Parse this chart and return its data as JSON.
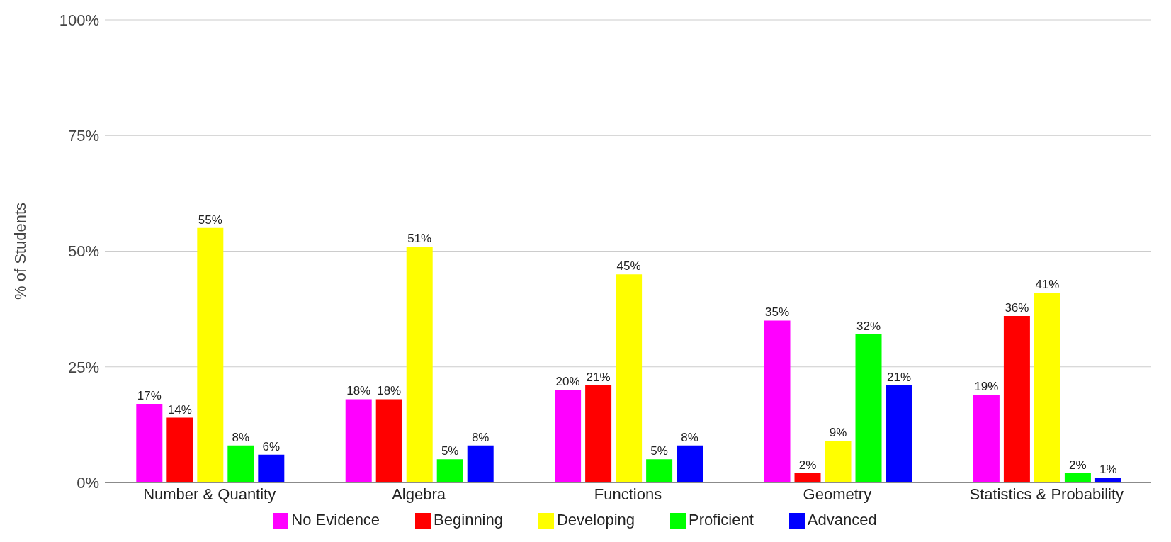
{
  "chart_data": {
    "type": "bar",
    "ylabel": "% of Students",
    "categories": [
      "Number & Quantity",
      "Algebra",
      "Functions",
      "Geometry",
      "Statistics & Probability"
    ],
    "series": [
      {
        "name": "No Evidence",
        "color": "#ff00ff",
        "values": [
          17,
          18,
          20,
          35,
          19
        ],
        "value_labels": [
          "17%",
          "18%",
          "20%",
          "35%",
          "19%"
        ]
      },
      {
        "name": "Beginning",
        "color": "#ff0000",
        "values": [
          14,
          18,
          21,
          2,
          36
        ],
        "value_labels": [
          "14%",
          "18%",
          "21%",
          "2%",
          "36%"
        ]
      },
      {
        "name": "Developing",
        "color": "#ffff00",
        "values": [
          55,
          51,
          45,
          9,
          41
        ],
        "value_labels": [
          "55%",
          "51%",
          "45%",
          "9%",
          "41%"
        ]
      },
      {
        "name": "Proficient",
        "color": "#00ff00",
        "values": [
          8,
          5,
          5,
          32,
          2
        ],
        "value_labels": [
          "8%",
          "5%",
          "5%",
          "32%",
          "2%"
        ]
      },
      {
        "name": "Advanced",
        "color": "#0000ff",
        "values": [
          6,
          8,
          8,
          21,
          1
        ],
        "value_labels": [
          "6%",
          "8%",
          "8%",
          "21%",
          "1%"
        ]
      }
    ],
    "ylim": [
      0,
      100
    ],
    "yticks": [
      {
        "value": 0,
        "label": "0%"
      },
      {
        "value": 25,
        "label": "25%"
      },
      {
        "value": 50,
        "label": "50%"
      },
      {
        "value": 75,
        "label": "75%"
      },
      {
        "value": 100,
        "label": "100%"
      }
    ],
    "grid": "y",
    "legend": "bottom"
  }
}
